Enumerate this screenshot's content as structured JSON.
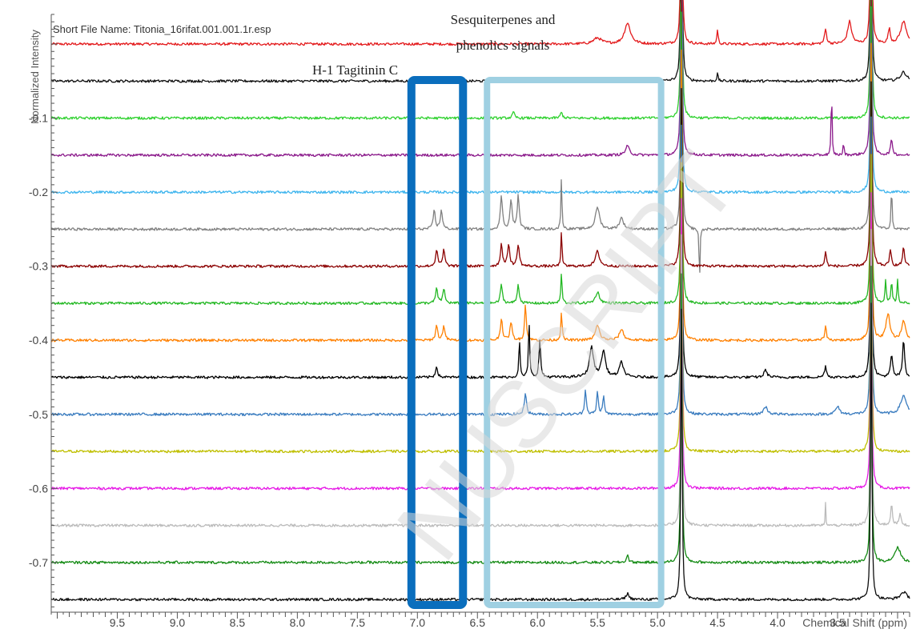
{
  "file_label": "Short File Name: Titonia_16rifat.001.001.1r.esp",
  "watermark": "NUSCRIPT",
  "annotations": {
    "tagitinin": "H-1  Tagitinin C",
    "sesqui_line1": "Sesquiterpenes and",
    "sesqui_line2": "phenolics signals"
  },
  "colors": {
    "tagitinin_box": "#0a6ebd",
    "sesqui_box": "#9fd0e2",
    "axis": "#555555",
    "text": "#333333"
  },
  "chart_data": {
    "type": "line",
    "title": "",
    "xlabel": "Chemical Shift (ppm)",
    "ylabel": "Normalized Intensity",
    "x_ticks": [
      9.5,
      9.0,
      8.5,
      8.0,
      7.5,
      7.0,
      6.5,
      6.0,
      5.5,
      5.0,
      4.5,
      4.0,
      3.5
    ],
    "x_tick_labels": [
      "9.5",
      "9.0",
      "8.5",
      "8.0",
      "7.5",
      "7.0",
      "6.5",
      "6.0",
      "5.5",
      "5.0",
      "4.5",
      "4.0",
      "3.5"
    ],
    "y_ticks": [
      -0.1,
      -0.2,
      -0.3,
      -0.4,
      -0.5,
      -0.6,
      -0.7
    ],
    "y_tick_labels": [
      "-0.1",
      "-0.2",
      "-0.3",
      "-0.4",
      "-0.5",
      "-0.6",
      "-0.7"
    ],
    "xlim": [
      10.05,
      2.9
    ],
    "ylim": [
      -0.765,
      0.04
    ],
    "x_reversed": true,
    "highlight_regions": [
      {
        "label": "H-1  Tagitinin C",
        "x_range": [
          7.05,
          6.62
        ],
        "color": "#0a6ebd"
      },
      {
        "label": "Sesquiterpenes and phenolics signals",
        "x_range": [
          6.42,
          4.97
        ],
        "color": "#9fd0e2"
      }
    ],
    "series": [
      {
        "color": "#e31a1c",
        "baseline": 0.0,
        "peaks": [
          [
            5.25,
            0.028,
            0.03
          ],
          [
            5.5,
            0.008,
            0.04
          ],
          [
            4.8,
            0.4,
            0.006
          ],
          [
            4.5,
            0.02,
            0.006
          ],
          [
            3.6,
            0.02,
            0.01
          ],
          [
            3.4,
            0.03,
            0.02
          ],
          [
            3.22,
            0.4,
            0.006
          ],
          [
            3.07,
            0.02,
            0.01
          ],
          [
            2.95,
            0.03,
            0.03
          ]
        ]
      },
      {
        "color": "#111111",
        "baseline": -0.05,
        "peaks": [
          [
            4.8,
            0.4,
            0.006
          ],
          [
            4.5,
            0.01,
            0.006
          ],
          [
            3.22,
            0.4,
            0.006
          ],
          [
            2.95,
            0.012,
            0.03
          ]
        ]
      },
      {
        "color": "#2fd12f",
        "baseline": -0.1,
        "peaks": [
          [
            6.2,
            0.008,
            0.01
          ],
          [
            5.8,
            0.008,
            0.01
          ],
          [
            4.8,
            0.4,
            0.006
          ],
          [
            3.22,
            0.4,
            0.006
          ]
        ]
      },
      {
        "color": "#8b1a8b",
        "baseline": -0.15,
        "peaks": [
          [
            5.25,
            0.012,
            0.02
          ],
          [
            4.8,
            0.4,
            0.006
          ],
          [
            3.55,
            0.1,
            0.004
          ],
          [
            3.45,
            0.02,
            0.004
          ],
          [
            3.22,
            0.4,
            0.006
          ],
          [
            3.05,
            0.02,
            0.01
          ]
        ]
      },
      {
        "color": "#3fb5ee",
        "baseline": -0.2,
        "peaks": [
          [
            4.8,
            0.4,
            0.006
          ],
          [
            3.22,
            0.4,
            0.006
          ]
        ]
      },
      {
        "color": "#808080",
        "baseline": -0.25,
        "peaks": [
          [
            6.86,
            0.026,
            0.01
          ],
          [
            6.8,
            0.026,
            0.01
          ],
          [
            6.3,
            0.045,
            0.01
          ],
          [
            6.22,
            0.04,
            0.01
          ],
          [
            6.16,
            0.045,
            0.01
          ],
          [
            5.8,
            0.07,
            0.005
          ],
          [
            5.5,
            0.03,
            0.02
          ],
          [
            5.3,
            0.015,
            0.02
          ],
          [
            4.8,
            0.4,
            0.006
          ],
          [
            4.65,
            -0.08,
            0.004
          ],
          [
            3.22,
            0.4,
            0.006
          ],
          [
            3.05,
            0.07,
            0.004
          ]
        ]
      },
      {
        "color": "#8b0000",
        "baseline": -0.3,
        "peaks": [
          [
            6.84,
            0.022,
            0.01
          ],
          [
            6.78,
            0.022,
            0.01
          ],
          [
            6.3,
            0.03,
            0.01
          ],
          [
            6.24,
            0.03,
            0.01
          ],
          [
            6.16,
            0.03,
            0.01
          ],
          [
            5.8,
            0.05,
            0.005
          ],
          [
            5.5,
            0.02,
            0.02
          ],
          [
            4.8,
            0.4,
            0.006
          ],
          [
            3.6,
            0.02,
            0.008
          ],
          [
            3.22,
            0.4,
            0.006
          ],
          [
            3.06,
            0.02,
            0.01
          ],
          [
            2.95,
            0.025,
            0.01
          ]
        ]
      },
      {
        "color": "#23b823",
        "baseline": -0.35,
        "peaks": [
          [
            6.84,
            0.02,
            0.01
          ],
          [
            6.78,
            0.02,
            0.01
          ],
          [
            6.3,
            0.025,
            0.01
          ],
          [
            6.16,
            0.025,
            0.01
          ],
          [
            5.8,
            0.04,
            0.006
          ],
          [
            5.5,
            0.015,
            0.02
          ],
          [
            4.8,
            0.4,
            0.006
          ],
          [
            3.22,
            0.4,
            0.006
          ],
          [
            3.1,
            0.03,
            0.006
          ],
          [
            3.05,
            0.03,
            0.006
          ],
          [
            3.0,
            0.03,
            0.006
          ]
        ]
      },
      {
        "color": "#ff8000",
        "baseline": -0.4,
        "peaks": [
          [
            6.84,
            0.02,
            0.01
          ],
          [
            6.78,
            0.02,
            0.01
          ],
          [
            6.3,
            0.03,
            0.01
          ],
          [
            6.22,
            0.025,
            0.01
          ],
          [
            6.1,
            0.05,
            0.008
          ],
          [
            5.8,
            0.04,
            0.006
          ],
          [
            5.5,
            0.02,
            0.02
          ],
          [
            5.3,
            0.015,
            0.02
          ],
          [
            4.8,
            0.4,
            0.006
          ],
          [
            3.6,
            0.02,
            0.008
          ],
          [
            3.22,
            0.4,
            0.006
          ],
          [
            3.08,
            0.035,
            0.02
          ],
          [
            2.95,
            0.025,
            0.02
          ]
        ]
      },
      {
        "color": "#000000",
        "baseline": -0.45,
        "peaks": [
          [
            6.84,
            0.015,
            0.01
          ],
          [
            6.15,
            0.05,
            0.006
          ],
          [
            6.07,
            0.075,
            0.006
          ],
          [
            5.98,
            0.05,
            0.008
          ],
          [
            5.55,
            0.04,
            0.02
          ],
          [
            5.45,
            0.035,
            0.02
          ],
          [
            5.3,
            0.02,
            0.02
          ],
          [
            4.8,
            0.4,
            0.006
          ],
          [
            4.1,
            0.01,
            0.015
          ],
          [
            3.6,
            0.015,
            0.01
          ],
          [
            3.22,
            0.4,
            0.006
          ],
          [
            3.05,
            0.03,
            0.01
          ],
          [
            2.95,
            0.05,
            0.01
          ]
        ]
      },
      {
        "color": "#3a7cbf",
        "baseline": -0.5,
        "peaks": [
          [
            6.1,
            0.03,
            0.01
          ],
          [
            5.6,
            0.035,
            0.008
          ],
          [
            5.5,
            0.03,
            0.008
          ],
          [
            5.45,
            0.025,
            0.008
          ],
          [
            4.8,
            0.4,
            0.006
          ],
          [
            4.1,
            0.01,
            0.02
          ],
          [
            3.5,
            0.01,
            0.02
          ],
          [
            3.22,
            0.4,
            0.006
          ],
          [
            2.95,
            0.025,
            0.03
          ]
        ]
      },
      {
        "color": "#bfbf00",
        "baseline": -0.55,
        "peaks": [
          [
            4.8,
            0.4,
            0.006
          ],
          [
            3.22,
            0.4,
            0.006
          ]
        ]
      },
      {
        "color": "#e61ae6",
        "baseline": -0.6,
        "peaks": [
          [
            4.8,
            0.4,
            0.006
          ],
          [
            3.22,
            0.4,
            0.006
          ]
        ]
      },
      {
        "color": "#bbbbbb",
        "baseline": -0.65,
        "peaks": [
          [
            4.8,
            0.4,
            0.006
          ],
          [
            3.6,
            0.03,
            0.003
          ],
          [
            3.22,
            0.4,
            0.006
          ],
          [
            3.05,
            0.03,
            0.008
          ],
          [
            2.98,
            0.015,
            0.01
          ]
        ]
      },
      {
        "color": "#138a13",
        "baseline": -0.7,
        "peaks": [
          [
            5.25,
            0.01,
            0.01
          ],
          [
            4.8,
            0.4,
            0.006
          ],
          [
            3.22,
            0.4,
            0.006
          ],
          [
            3.0,
            0.02,
            0.03
          ]
        ]
      },
      {
        "color": "#0d0d0d",
        "baseline": -0.75,
        "peaks": [
          [
            5.25,
            0.008,
            0.015
          ],
          [
            4.8,
            0.4,
            0.006
          ],
          [
            3.22,
            0.4,
            0.006
          ],
          [
            2.95,
            0.01,
            0.03
          ]
        ]
      }
    ]
  }
}
